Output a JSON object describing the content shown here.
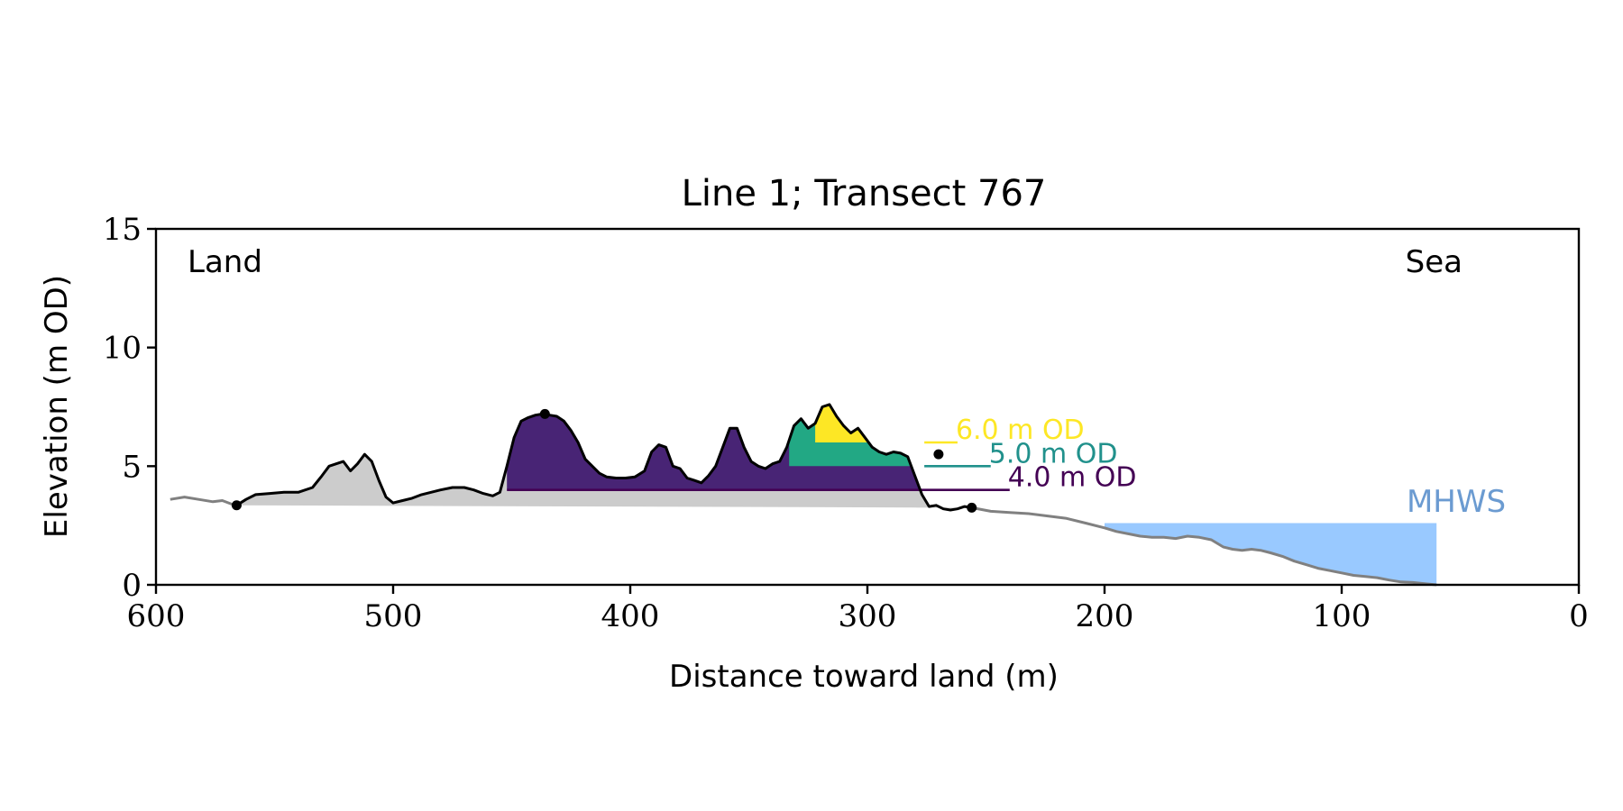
{
  "chart_data": {
    "type": "area",
    "title": "Line 1; Transect 767",
    "xlabel": "Distance toward land (m)",
    "ylabel": "Elevation (m OD)",
    "xlim": [
      600,
      0
    ],
    "ylim": [
      0,
      15
    ],
    "xticks": [
      600,
      500,
      400,
      300,
      200,
      100,
      0
    ],
    "yticks": [
      0,
      5,
      10,
      15
    ],
    "grid": false,
    "annotations": {
      "land": "Land",
      "sea": "Sea",
      "mhws_label": "MHWS",
      "mhws_elevation": 2.6,
      "mhws_extent": [
        200,
        60
      ]
    },
    "colors": {
      "profile_outer": "#808080",
      "profile_dune": "#000000",
      "dune_base_fill": "#cccccc",
      "mhws_fill": "#99c9ff",
      "mhws_label": "#6b9bd1",
      "level_4": "#440154",
      "level_4_fill": "#482475",
      "level_5": "#21918c",
      "level_5_fill": "#22a884",
      "level_6": "#fde725"
    },
    "profile_outer_left": {
      "x": [
        594,
        588,
        582,
        576,
        572,
        568,
        566
      ],
      "y": [
        3.6,
        3.7,
        3.6,
        3.5,
        3.55,
        3.4,
        3.35
      ]
    },
    "profile_dune": {
      "x": [
        566,
        562,
        558,
        552,
        546,
        540,
        534,
        530,
        527,
        524,
        521,
        518,
        515,
        512,
        509,
        506,
        503,
        500,
        496,
        492,
        488,
        484,
        480,
        475,
        470,
        466,
        462,
        458,
        455,
        452,
        449,
        446,
        443,
        440,
        437,
        434,
        431,
        428,
        425,
        422,
        419,
        416,
        413,
        410,
        406,
        402,
        398,
        394,
        391,
        388,
        385,
        382,
        379,
        376,
        373,
        370,
        367,
        364,
        361,
        358,
        355,
        352,
        349,
        346,
        343,
        340,
        337,
        334,
        331,
        328,
        325,
        322,
        319,
        316,
        313,
        310,
        307,
        304,
        301,
        298,
        295,
        292,
        289,
        286,
        283,
        280,
        277,
        274,
        271,
        268,
        265,
        262,
        259,
        256
      ],
      "y": [
        3.35,
        3.6,
        3.8,
        3.85,
        3.9,
        3.9,
        4.1,
        4.6,
        5.0,
        5.1,
        5.2,
        4.8,
        5.1,
        5.5,
        5.2,
        4.4,
        3.7,
        3.45,
        3.55,
        3.65,
        3.8,
        3.9,
        4.0,
        4.1,
        4.1,
        4.0,
        3.85,
        3.75,
        3.9,
        5.0,
        6.2,
        6.9,
        7.05,
        7.15,
        7.2,
        7.15,
        7.1,
        6.9,
        6.5,
        6.0,
        5.3,
        5.0,
        4.7,
        4.55,
        4.5,
        4.5,
        4.55,
        4.8,
        5.6,
        5.9,
        5.8,
        5.0,
        4.9,
        4.5,
        4.4,
        4.3,
        4.6,
        5.0,
        5.8,
        6.6,
        6.6,
        5.8,
        5.2,
        5.0,
        4.9,
        5.1,
        5.2,
        5.8,
        6.7,
        7.0,
        6.6,
        6.8,
        7.5,
        7.6,
        7.1,
        6.7,
        6.4,
        6.6,
        6.2,
        5.8,
        5.6,
        5.5,
        5.6,
        5.55,
        5.4,
        4.6,
        3.8,
        3.3,
        3.35,
        3.2,
        3.15,
        3.2,
        3.3,
        3.25
      ]
    },
    "profile_outer_right": {
      "x": [
        256,
        248,
        240,
        232,
        224,
        216,
        208,
        200,
        195,
        190,
        185,
        180,
        175,
        170,
        165,
        160,
        155,
        150,
        146,
        142,
        138,
        134,
        130,
        125,
        120,
        115,
        110,
        105,
        100,
        95,
        90,
        85,
        80,
        75,
        70,
        65,
        60
      ],
      "y": [
        3.25,
        3.1,
        3.05,
        3.0,
        2.9,
        2.8,
        2.6,
        2.4,
        2.25,
        2.15,
        2.05,
        2.0,
        2.0,
        1.95,
        2.05,
        2.0,
        1.9,
        1.6,
        1.5,
        1.45,
        1.5,
        1.45,
        1.35,
        1.2,
        1.0,
        0.85,
        0.7,
        0.6,
        0.5,
        0.4,
        0.35,
        0.3,
        0.2,
        0.12,
        0.1,
        0.05,
        0.0
      ]
    },
    "dune_base": {
      "left": [
        566,
        3.35
      ],
      "right": [
        256,
        3.25
      ]
    },
    "dune_points": [
      {
        "x": 566,
        "y": 3.35
      },
      {
        "x": 436,
        "y": 7.2
      },
      {
        "x": 270,
        "y": 5.5
      },
      {
        "x": 256,
        "y": 3.25
      }
    ],
    "levels": [
      {
        "label": "4.0 m OD",
        "value": 4.0,
        "x_start": 452,
        "x_end": 240
      },
      {
        "label": "5.0 m OD",
        "value": 5.0,
        "x_start": 333,
        "x_end": 248
      },
      {
        "label": "6.0 m OD",
        "value": 6.0,
        "x_start": 322,
        "x_end": 262
      }
    ]
  }
}
